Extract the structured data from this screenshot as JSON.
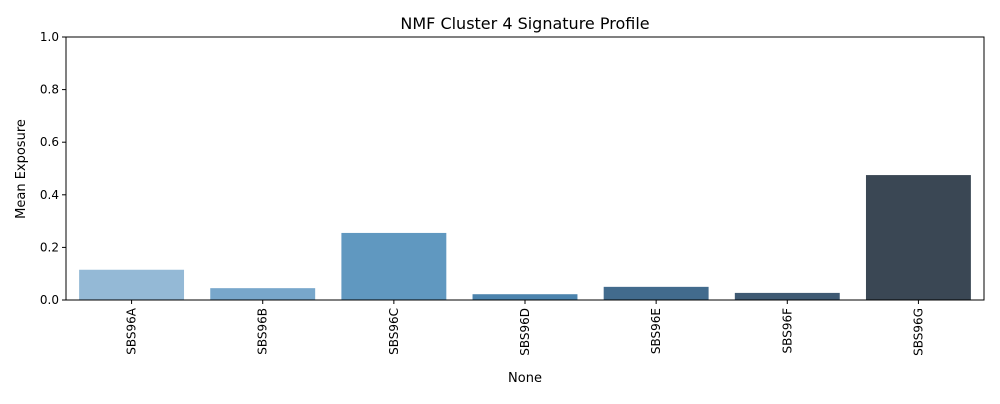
{
  "chart_data": {
    "type": "bar",
    "title": "NMF Cluster 4 Signature Profile",
    "xlabel": "None",
    "ylabel": "Mean Exposure",
    "categories": [
      "SBS96A",
      "SBS96B",
      "SBS96C",
      "SBS96D",
      "SBS96E",
      "SBS96F",
      "SBS96G"
    ],
    "values": [
      0.115,
      0.045,
      0.255,
      0.022,
      0.05,
      0.027,
      0.475
    ],
    "ylim": [
      0,
      1.0
    ],
    "yticks": [
      "0.0",
      "0.2",
      "0.4",
      "0.6",
      "0.8",
      "1.0"
    ],
    "bar_colors": [
      "#94b9d6",
      "#78a7cb",
      "#6098c0",
      "#4b83ad",
      "#426b8d",
      "#3f5a73",
      "#3a4754"
    ],
    "grid": false,
    "legend": "none"
  }
}
